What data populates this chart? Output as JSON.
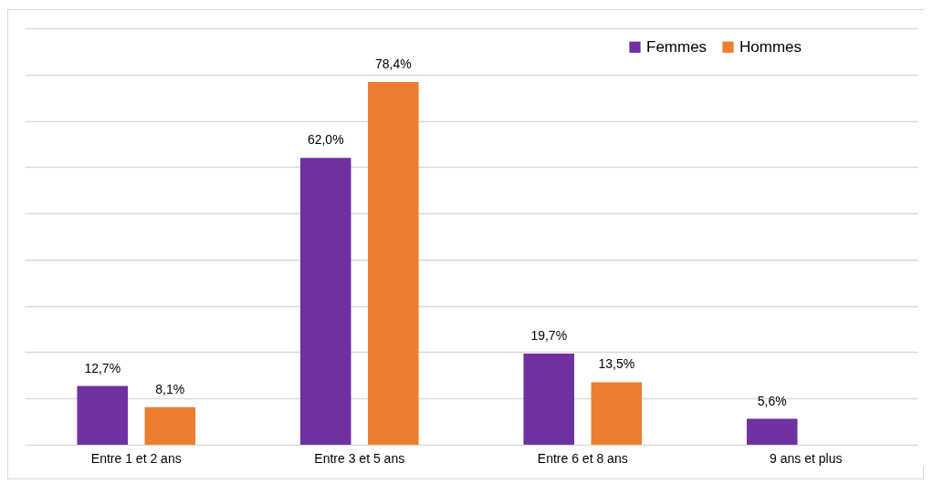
{
  "chart_data": {
    "type": "bar",
    "categories": [
      "Entre 1 et 2 ans",
      "Entre 3 et 5 ans",
      "Entre 6 et 8 ans",
      "9 ans et plus"
    ],
    "series": [
      {
        "name": "Femmes",
        "color": "#7030a0",
        "values": [
          12.7,
          62.0,
          19.7,
          5.6
        ],
        "value_labels": [
          "12,7%",
          "62,0%",
          "19,7%",
          "5,6%"
        ]
      },
      {
        "name": "Hommes",
        "color": "#ed7d31",
        "values": [
          8.1,
          78.4,
          13.5,
          null
        ],
        "value_labels": [
          "8,1%",
          "78,4%",
          "13,5%",
          null
        ]
      }
    ],
    "ylim": [
      0,
      90
    ],
    "yticks": [
      {
        "value": 0,
        "label": null
      },
      {
        "value": 10,
        "label": null
      },
      {
        "value": 20,
        "label": null
      },
      {
        "value": 30,
        "label": null
      },
      {
        "value": 40,
        "label": null
      },
      {
        "value": 50,
        "label": null
      },
      {
        "value": 60,
        "label": null
      },
      {
        "value": 70,
        "label": null
      },
      {
        "value": 80,
        "label": null
      },
      {
        "value": 90,
        "label": null
      }
    ],
    "tick_labels": "x",
    "grid": "y",
    "legend": "top right"
  }
}
